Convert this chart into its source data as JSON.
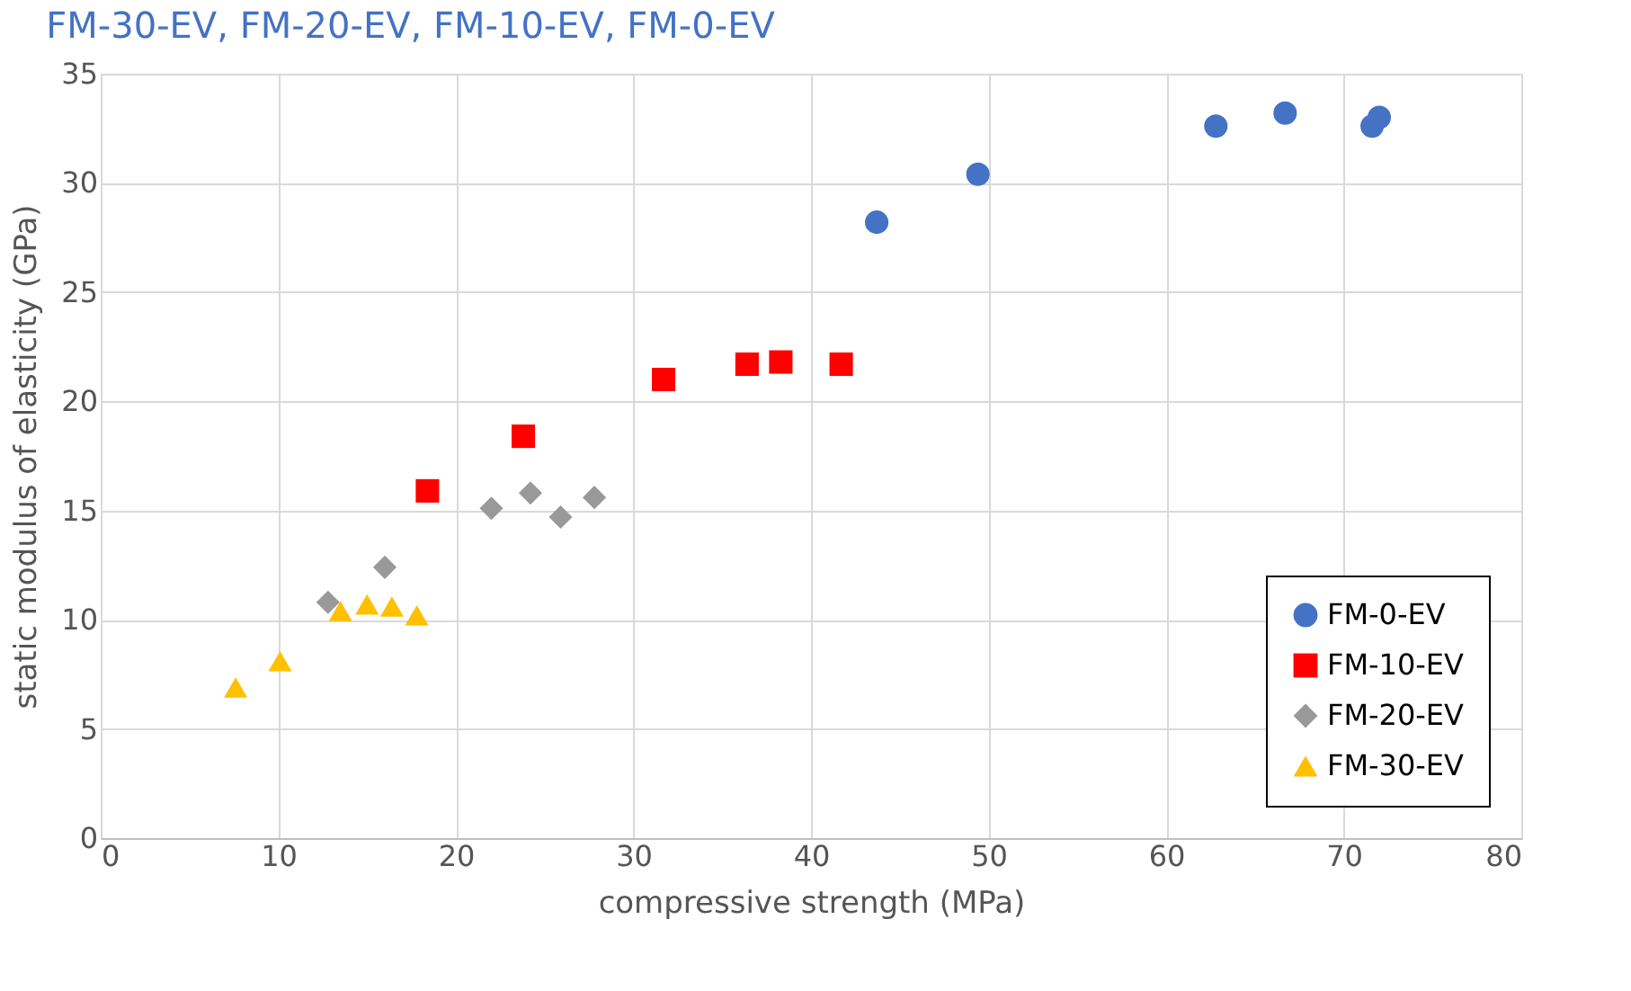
{
  "chart_data": {
    "type": "scatter",
    "title": "FM-30-EV, FM-20-EV, FM-10-EV, FM-0-EV",
    "xlabel": "compressive strength (MPa)",
    "ylabel": "static modulus of elasticity (GPa)",
    "xlim": [
      0,
      80
    ],
    "xticks": [
      0,
      10,
      20,
      30,
      40,
      50,
      60,
      70,
      80
    ],
    "ylim": [
      0,
      35
    ],
    "yticks": [
      0,
      5,
      10,
      15,
      20,
      25,
      30,
      35
    ],
    "grid": true,
    "legend": "bottom right",
    "series": [
      {
        "name": "FM-0-EV",
        "color": "#4472c4",
        "marker": "circle",
        "x": [
          43.7,
          49.4,
          62.8,
          66.7,
          71.6,
          72.0
        ],
        "values": [
          28.2,
          30.4,
          32.6,
          33.2,
          32.6,
          33.0
        ]
      },
      {
        "name": "FM-10-EV",
        "color": "#ff0000",
        "marker": "square",
        "x": [
          18.4,
          23.8,
          31.7,
          36.4,
          38.3,
          41.7
        ],
        "values": [
          15.9,
          18.4,
          21.0,
          21.7,
          21.8,
          21.7
        ]
      },
      {
        "name": "FM-20-EV",
        "color": "#999999",
        "marker": "diamond",
        "x": [
          12.8,
          16.0,
          22.0,
          24.2,
          25.9,
          27.8
        ],
        "values": [
          10.8,
          12.4,
          15.1,
          15.8,
          14.7,
          15.6
        ]
      },
      {
        "name": "FM-30-EV",
        "color": "#ffc000",
        "marker": "triangle",
        "x": [
          7.6,
          10.1,
          13.5,
          15.0,
          16.4,
          17.8
        ],
        "values": [
          6.9,
          8.1,
          10.4,
          10.7,
          10.6,
          10.2
        ]
      }
    ]
  }
}
